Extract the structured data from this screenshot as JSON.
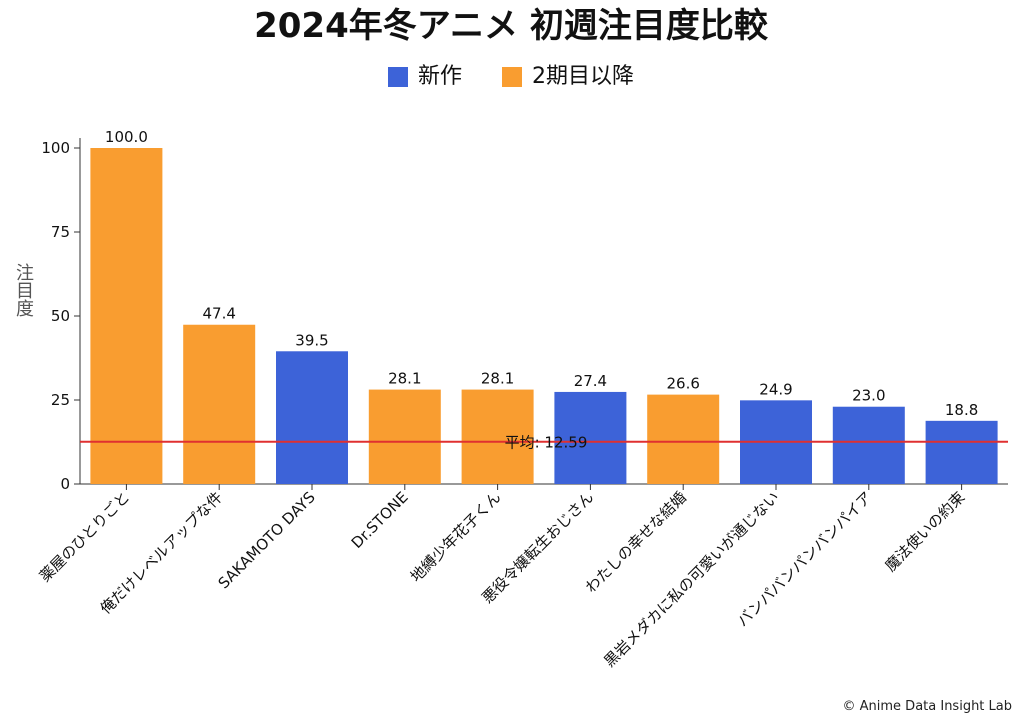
{
  "chart_data": {
    "type": "bar",
    "title": "2024年冬アニメ 初週注目度比較",
    "ylabel": "注目度",
    "xlabel": "",
    "ylim": [
      0,
      100
    ],
    "yticks": [
      0,
      25,
      50,
      75,
      100
    ],
    "grid": false,
    "legend_position": "top-center",
    "legend": [
      {
        "name": "新作",
        "color": "#3d63d8"
      },
      {
        "name": "2期目以降",
        "color": "#f99d30"
      }
    ],
    "categories": [
      "薬屋のひとりごと",
      "俺だけレベルアップな件",
      "SAKAMOTO DAYS",
      "Dr.STONE",
      "地縛少年花子くん",
      "悪役令嬢転生おじさん",
      "わたしの幸せな結婚",
      "黒岩メダカに私の可愛いが通じない",
      "バンパバンパンバンパイア",
      "魔法使いの約束"
    ],
    "values": [
      100.0,
      47.4,
      39.5,
      28.1,
      28.1,
      27.4,
      26.6,
      24.9,
      23.0,
      18.8
    ],
    "value_labels": [
      "100.0",
      "47.4",
      "39.5",
      "28.1",
      "28.1",
      "27.4",
      "26.6",
      "24.9",
      "23.0",
      "18.8"
    ],
    "groups": [
      "2期目以降",
      "2期目以降",
      "新作",
      "2期目以降",
      "2期目以降",
      "新作",
      "2期目以降",
      "新作",
      "新作",
      "新作"
    ],
    "average": {
      "value": 12.59,
      "label": "平均: 12.59",
      "color": "#e03030"
    }
  },
  "credit": "© Anime Data Insight Lab"
}
